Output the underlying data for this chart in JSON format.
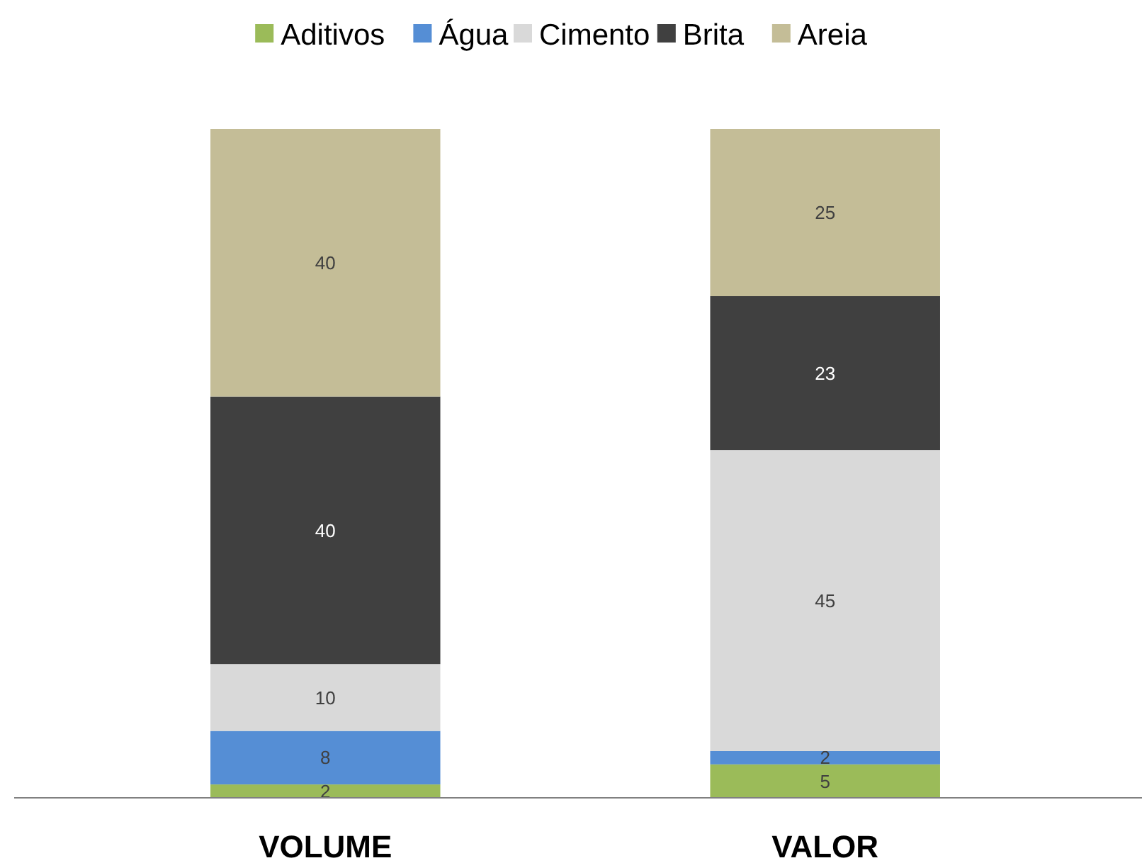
{
  "chart_data": {
    "type": "bar",
    "stacked": true,
    "categories": [
      "VOLUME",
      "VALOR"
    ],
    "ylim": [
      0,
      100
    ],
    "tick_labels": "x",
    "data_labels": true,
    "legend": "top",
    "series": [
      {
        "name": "Aditivos",
        "color": "#9bbb59",
        "values": [
          2,
          5
        ]
      },
      {
        "name": "Água",
        "color": "#558ed5",
        "values": [
          8,
          2
        ]
      },
      {
        "name": "Cimento",
        "color": "#d9d9d9",
        "values": [
          10,
          45
        ]
      },
      {
        "name": "Brita",
        "color": "#404040",
        "values": [
          40,
          23
        ]
      },
      {
        "name": "Areia",
        "color": "#c4bd97",
        "values": [
          40,
          25
        ]
      }
    ]
  }
}
